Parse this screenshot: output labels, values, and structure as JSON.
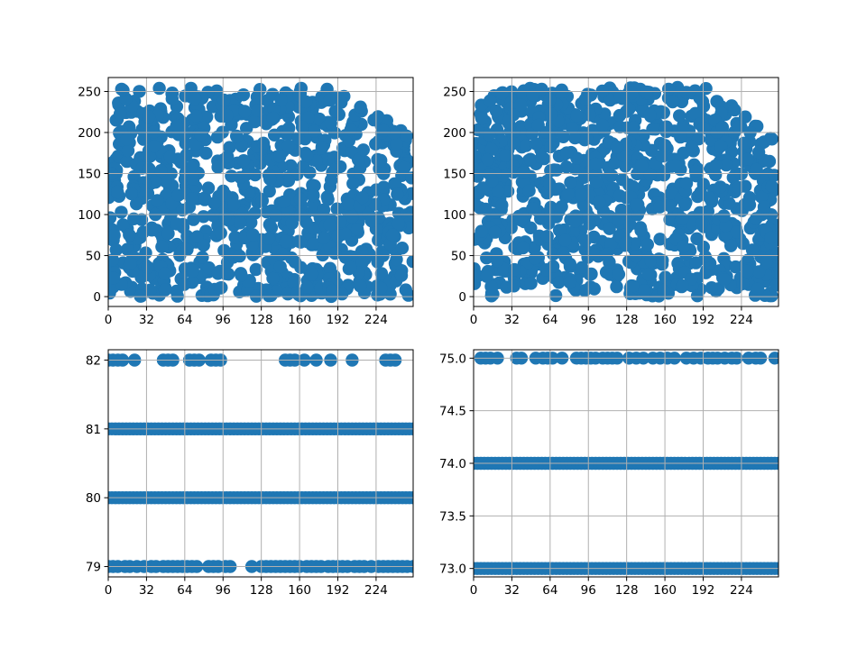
{
  "figure": {
    "background": "#ffffff",
    "marker_color": "#1f77b4",
    "grid_color": "#b0b0b0"
  },
  "chart_data": [
    {
      "type": "scatter",
      "title": "",
      "xlabel": "",
      "ylabel": "",
      "xlim": [
        0,
        255
      ],
      "ylim": [
        -12,
        267
      ],
      "xticks": [
        0,
        32,
        64,
        96,
        128,
        160,
        192,
        224
      ],
      "yticks": [
        0,
        50,
        100,
        150,
        200,
        250
      ],
      "xtick_labels": [
        "0",
        "32",
        "64",
        "96",
        "128",
        "160",
        "192",
        "224"
      ],
      "ytick_labels": [
        "0",
        "50",
        "100",
        "150",
        "200",
        "250"
      ],
      "grid": true,
      "description_of_points": "dense uniform random cloud, x 0-255, y 0-255, upper-right corner sparse",
      "points": {
        "x_range": [
          0,
          255
        ],
        "y_range": [
          0,
          255
        ],
        "count": 900,
        "upper_right_cutoff": true
      }
    },
    {
      "type": "scatter",
      "title": "",
      "xlabel": "",
      "ylabel": "",
      "xlim": [
        0,
        255
      ],
      "ylim": [
        -12,
        267
      ],
      "xticks": [
        0,
        32,
        64,
        96,
        128,
        160,
        192,
        224
      ],
      "yticks": [
        0,
        50,
        100,
        150,
        200,
        250
      ],
      "xtick_labels": [
        "0",
        "32",
        "64",
        "96",
        "128",
        "160",
        "192",
        "224"
      ],
      "ytick_labels": [
        "0",
        "50",
        "100",
        "150",
        "200",
        "250"
      ],
      "grid": true,
      "points": {
        "x_range": [
          0,
          255
        ],
        "y_range": [
          0,
          255
        ],
        "count": 900,
        "upper_right_cutoff": true
      }
    },
    {
      "type": "scatter",
      "title": "",
      "xlabel": "",
      "ylabel": "",
      "xlim": [
        0,
        255
      ],
      "ylim": [
        78.85,
        82.15
      ],
      "xticks": [
        0,
        32,
        64,
        96,
        128,
        160,
        192,
        224
      ],
      "yticks": [
        79,
        80,
        81,
        82
      ],
      "xtick_labels": [
        "0",
        "32",
        "64",
        "96",
        "128",
        "160",
        "192",
        "224"
      ],
      "ytick_labels": [
        "79",
        "80",
        "81",
        "82"
      ],
      "grid": true,
      "rows": [
        {
          "y": 82,
          "x": [
            0,
            4,
            8,
            12,
            22,
            46,
            50,
            54,
            68,
            72,
            76,
            86,
            90,
            94,
            148,
            152,
            156,
            164,
            174,
            186,
            204,
            232,
            236,
            240
          ]
        },
        {
          "y": 81,
          "x_dense": [
            0,
            255
          ]
        },
        {
          "y": 80,
          "x_dense": [
            0,
            255
          ]
        },
        {
          "y": 79,
          "x": [
            0,
            4,
            8,
            14,
            18,
            24,
            30,
            36,
            40,
            46,
            50,
            54,
            58,
            62,
            66,
            70,
            74,
            84,
            88,
            92,
            98,
            102,
            120,
            128,
            132,
            136,
            140,
            144,
            148,
            152,
            156,
            160,
            166,
            170,
            174,
            178,
            184,
            188,
            192,
            196,
            200,
            206,
            210,
            214,
            220,
            226,
            230,
            234,
            238,
            242,
            246,
            250,
            255
          ]
        }
      ]
    },
    {
      "type": "scatter",
      "title": "",
      "xlabel": "",
      "ylabel": "",
      "xlim": [
        0,
        255
      ],
      "ylim": [
        72.92,
        75.08
      ],
      "xticks": [
        0,
        32,
        64,
        96,
        128,
        160,
        192,
        224
      ],
      "yticks": [
        73.0,
        73.5,
        74.0,
        74.5,
        75.0
      ],
      "xtick_labels": [
        "0",
        "32",
        "64",
        "96",
        "128",
        "160",
        "192",
        "224"
      ],
      "ytick_labels": [
        "73.0",
        "73.5",
        "74.0",
        "74.5",
        "75.0"
      ],
      "grid": true,
      "rows": [
        {
          "y": 75,
          "x": [
            6,
            10,
            14,
            20,
            36,
            40,
            52,
            58,
            62,
            66,
            74,
            86,
            90,
            94,
            98,
            102,
            108,
            112,
            116,
            120,
            130,
            136,
            142,
            150,
            156,
            162,
            168,
            178,
            184,
            190,
            196,
            200,
            204,
            210,
            216,
            220,
            230,
            236,
            240,
            252
          ]
        },
        {
          "y": 74,
          "x_dense": [
            0,
            255
          ]
        },
        {
          "y": 73,
          "x_dense": [
            0,
            255
          ]
        }
      ]
    }
  ]
}
